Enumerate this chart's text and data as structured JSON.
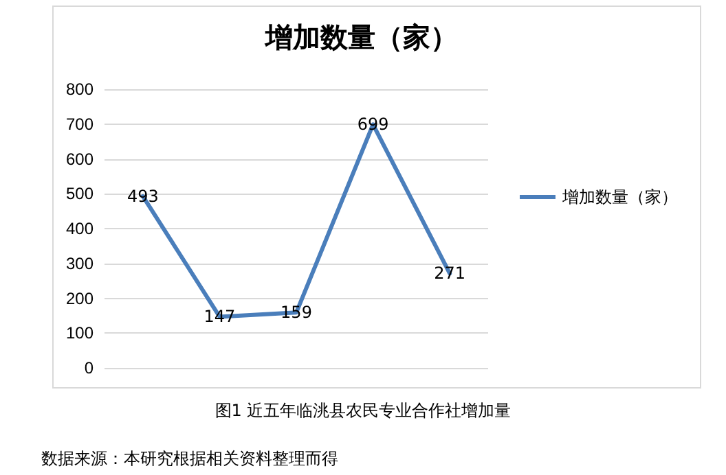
{
  "chart_data": {
    "type": "line",
    "title": "增加数量（家）",
    "categories": [
      null,
      null,
      null,
      null,
      null
    ],
    "series": [
      {
        "name": "增加数量（家）",
        "color": "#4a7ebb",
        "values": [
          493,
          147,
          159,
          699,
          271
        ]
      }
    ],
    "ylim": [
      0,
      800
    ],
    "yticks": [
      0,
      100,
      200,
      300,
      400,
      500,
      600,
      700,
      800
    ],
    "grid": "y",
    "legend": "right",
    "marker": "none",
    "line_style": "solid",
    "data_labels": true,
    "annotations": [
      "图1 近五年临洮县农民专业合作社增加量",
      "数据来源：本研究根据相关资料整理而得"
    ]
  }
}
